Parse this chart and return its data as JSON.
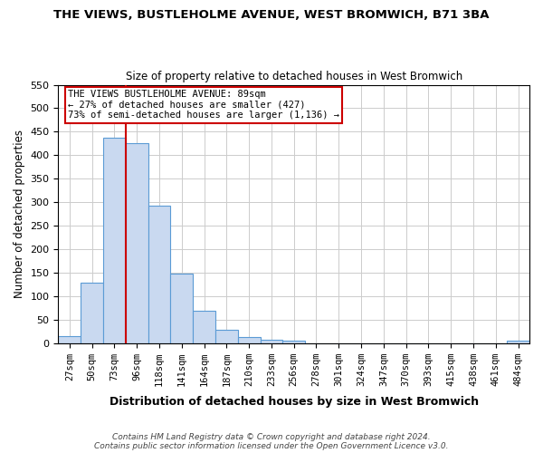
{
  "title": "THE VIEWS, BUSTLEHOLME AVENUE, WEST BROMWICH, B71 3BA",
  "subtitle": "Size of property relative to detached houses in West Bromwich",
  "xlabel": "Distribution of detached houses by size in West Bromwich",
  "ylabel": "Number of detached properties",
  "footnote1": "Contains HM Land Registry data © Crown copyright and database right 2024.",
  "footnote2": "Contains public sector information licensed under the Open Government Licence v3.0.",
  "bar_labels": [
    "27sqm",
    "50sqm",
    "73sqm",
    "96sqm",
    "118sqm",
    "141sqm",
    "164sqm",
    "187sqm",
    "210sqm",
    "233sqm",
    "256sqm",
    "278sqm",
    "301sqm",
    "324sqm",
    "347sqm",
    "370sqm",
    "393sqm",
    "415sqm",
    "438sqm",
    "461sqm",
    "484sqm"
  ],
  "bar_values": [
    15,
    128,
    438,
    425,
    292,
    147,
    68,
    29,
    13,
    8,
    5,
    0,
    0,
    0,
    0,
    0,
    0,
    0,
    0,
    0,
    5
  ],
  "bar_color": "#c9d9f0",
  "bar_edge_color": "#5b9bd5",
  "ylim": [
    0,
    550
  ],
  "yticks": [
    0,
    50,
    100,
    150,
    200,
    250,
    300,
    350,
    400,
    450,
    500,
    550
  ],
  "marker_bin_index": 3,
  "marker_color": "#cc0000",
  "annotation_line1": "THE VIEWS BUSTLEHOLME AVENUE: 89sqm",
  "annotation_line2": "← 27% of detached houses are smaller (427)",
  "annotation_line3": "73% of semi-detached houses are larger (1,136) →",
  "annotation_box_color": "#cc0000"
}
